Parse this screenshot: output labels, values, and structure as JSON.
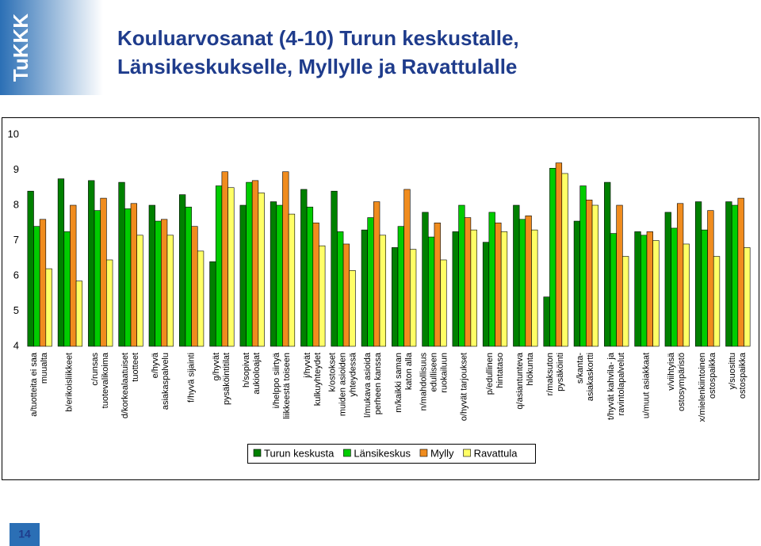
{
  "slide": {
    "logo": "TuKKK",
    "title": [
      "Kouluarvosanat (4-10) Turun keskustalle,",
      "Länsikeskukselle, Myllylle ja Ravattulalle"
    ],
    "page_number": 14
  },
  "chart_data": {
    "type": "bar",
    "categories": [
      "a/tuotteita ei saa\nmuualta",
      "b/erikoisliikkeet",
      "c/runsas\ntuotevalikoima",
      "d/korkealaatuiset\ntuotteet",
      "e/hyvä\nasiakaspalvelu",
      "f/hyvä sijainti",
      "g/hyvät\npysäköintitilat",
      "h/sopivat\naukioloajat",
      "i/helppo siirtyä\nliikkeestä toiseen",
      "j/hyvät\nkulkuyhteydet",
      "k/ostokset\nmuiden asioiden\nyhteydessä",
      "l/mukava asioida\nperheen kanssa",
      "m/kaikki saman\nkaton alla",
      "n/mahdollisuus\nedulliseen\nruokailuun",
      "o/hyvät tarjoukset",
      "p/edullinen\nhintataso",
      "q/asiantunteva\nhlökunta",
      "r/maksuton\npysäköinti",
      "s/kanta-\nasiakaskortti",
      "t/hyvät kahvila- ja\nravintolapalvelut",
      "u/muut asiakkaat",
      "v/viihtyisä\nostosympäristö",
      "x/mielenkiintoinen\nostospaikka",
      "y/suosittu\nostospaikka"
    ],
    "series": [
      {
        "name": "Turun keskusta",
        "color": "#008000",
        "values": [
          8.4,
          8.75,
          8.7,
          8.65,
          8.0,
          8.3,
          6.4,
          8.0,
          8.1,
          8.45,
          8.4,
          7.3,
          6.8,
          7.8,
          7.25,
          6.95,
          8.0,
          5.4,
          7.55,
          8.65,
          7.25,
          7.8,
          8.1,
          8.1
        ]
      },
      {
        "name": "Länsikeskus",
        "color": "#00cc00",
        "values": [
          7.4,
          7.25,
          7.85,
          7.9,
          7.55,
          7.95,
          8.55,
          8.65,
          8.0,
          7.95,
          7.25,
          7.65,
          7.4,
          7.1,
          8.0,
          7.8,
          7.6,
          9.05,
          8.55,
          7.2,
          7.15,
          7.35,
          7.3,
          8.0
        ]
      },
      {
        "name": "Mylly",
        "color": "#f08c1e",
        "values": [
          7.6,
          8.0,
          8.2,
          8.05,
          7.6,
          7.4,
          8.95,
          8.7,
          8.95,
          7.5,
          6.9,
          8.1,
          8.45,
          7.5,
          7.65,
          7.5,
          7.7,
          9.2,
          8.15,
          8.0,
          7.25,
          8.05,
          7.85,
          8.2
        ]
      },
      {
        "name": "Ravattula",
        "color": "#ffff66",
        "values": [
          6.2,
          5.85,
          6.45,
          7.15,
          7.15,
          6.7,
          8.5,
          8.35,
          7.75,
          6.85,
          6.15,
          7.15,
          6.75,
          6.45,
          7.3,
          7.25,
          7.3,
          8.9,
          8.0,
          6.55,
          7.0,
          6.9,
          6.55,
          6.8
        ]
      }
    ],
    "ylim": [
      4,
      10
    ],
    "yticks": [
      4,
      5,
      6,
      7,
      8,
      9,
      10
    ],
    "grid": false
  }
}
